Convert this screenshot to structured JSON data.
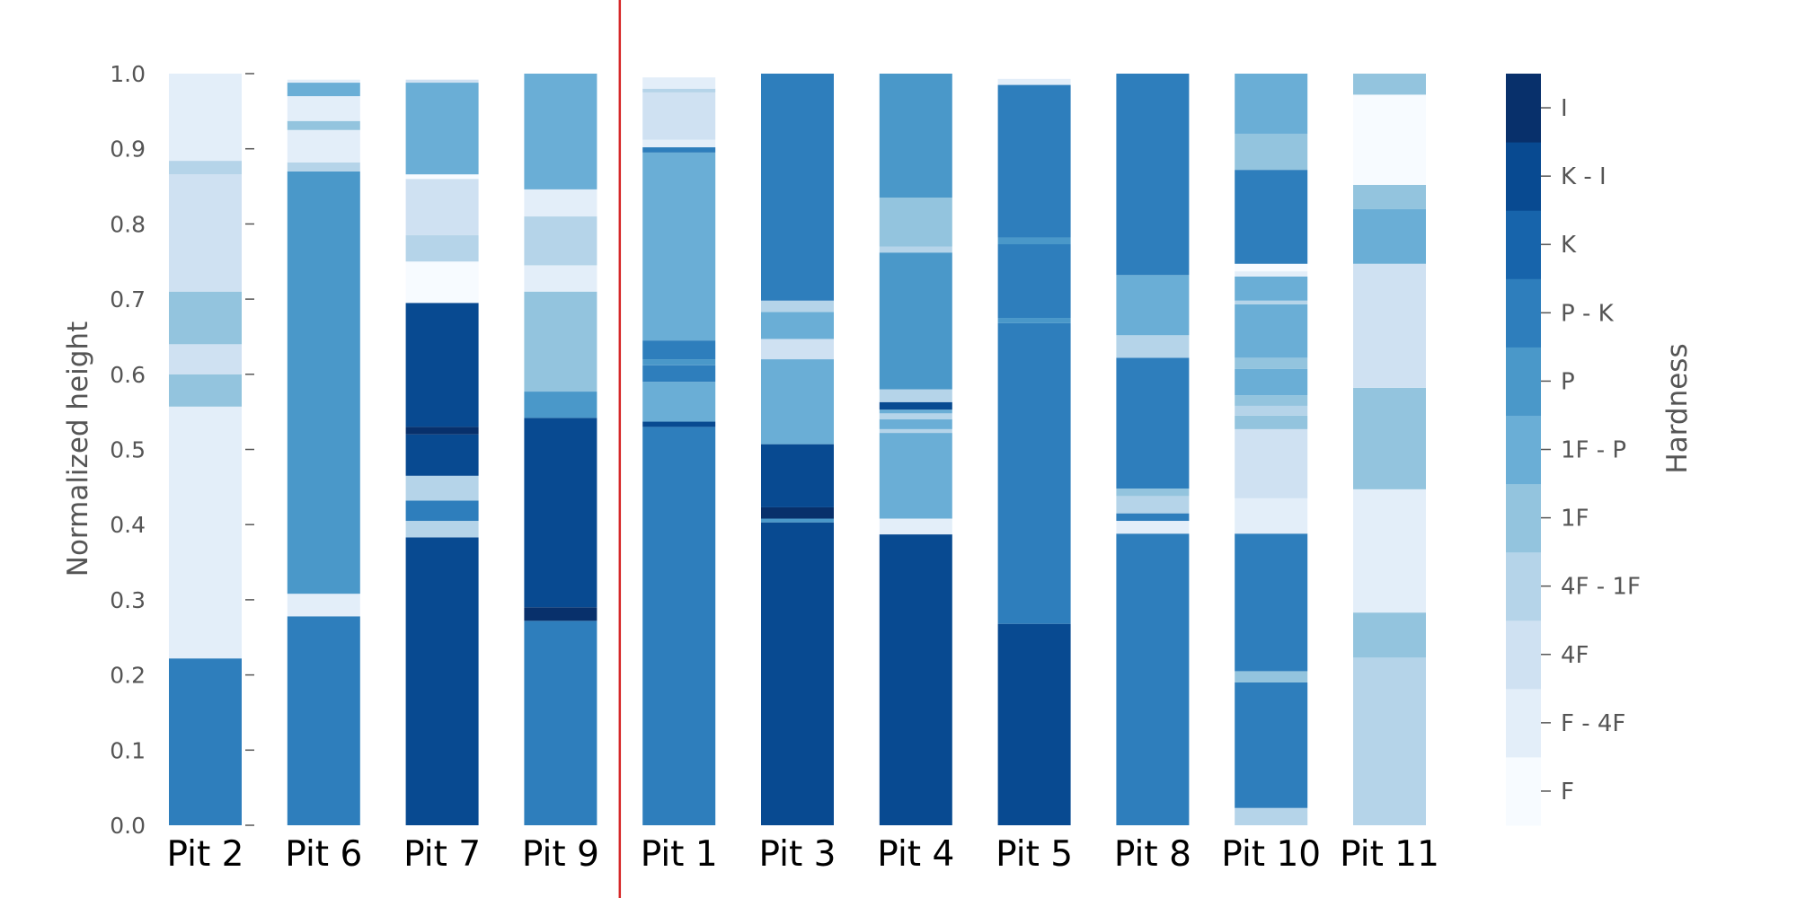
{
  "chart_data": {
    "type": "bar",
    "title": "",
    "xlabel": "",
    "ylabel": "Normalized height",
    "ylim": [
      0.0,
      1.0
    ],
    "yticks": [
      "0.0",
      "0.1",
      "0.2",
      "0.3",
      "0.4",
      "0.5",
      "0.6",
      "0.7",
      "0.8",
      "0.9",
      "1.0"
    ],
    "colorbar_label": "Hardness",
    "hardness_levels": [
      {
        "label": "F",
        "color": "#f7fbff"
      },
      {
        "label": "F - 4F",
        "color": "#e3eef9"
      },
      {
        "label": "4F",
        "color": "#cfe1f2"
      },
      {
        "label": "4F - 1F",
        "color": "#b5d4e9"
      },
      {
        "label": "1F",
        "color": "#93c4de"
      },
      {
        "label": "1F - P",
        "color": "#6aaed6"
      },
      {
        "label": "P",
        "color": "#4a98c9"
      },
      {
        "label": "P - K",
        "color": "#2e7ebc"
      },
      {
        "label": "K",
        "color": "#1764ab"
      },
      {
        "label": "K - I",
        "color": "#084a91"
      },
      {
        "label": "I",
        "color": "#08306b"
      }
    ],
    "separator_after_category": "Pit 9",
    "separator_color": "#d62728",
    "categories": [
      "Pit 2",
      "Pit 6",
      "Pit 7",
      "Pit 9",
      "Pit 1",
      "Pit 3",
      "Pit 4",
      "Pit 5",
      "Pit 8",
      "Pit 10",
      "Pit 11"
    ],
    "pits": [
      {
        "name": "Pit 2",
        "layers": [
          {
            "from": 0.0,
            "to": 0.222,
            "hardness": "P - K"
          },
          {
            "from": 0.222,
            "to": 0.557,
            "hardness": "F - 4F"
          },
          {
            "from": 0.557,
            "to": 0.6,
            "hardness": "1F"
          },
          {
            "from": 0.6,
            "to": 0.64,
            "hardness": "4F"
          },
          {
            "from": 0.64,
            "to": 0.71,
            "hardness": "1F"
          },
          {
            "from": 0.71,
            "to": 0.866,
            "hardness": "4F"
          },
          {
            "from": 0.866,
            "to": 0.884,
            "hardness": "4F - 1F"
          },
          {
            "from": 0.884,
            "to": 1.0,
            "hardness": "F - 4F"
          }
        ]
      },
      {
        "name": "Pit 6",
        "layers": [
          {
            "from": 0.0,
            "to": 0.278,
            "hardness": "P - K"
          },
          {
            "from": 0.278,
            "to": 0.308,
            "hardness": "F - 4F"
          },
          {
            "from": 0.308,
            "to": 0.87,
            "hardness": "P"
          },
          {
            "from": 0.87,
            "to": 0.882,
            "hardness": "4F - 1F"
          },
          {
            "from": 0.882,
            "to": 0.925,
            "hardness": "F - 4F"
          },
          {
            "from": 0.925,
            "to": 0.937,
            "hardness": "1F"
          },
          {
            "from": 0.937,
            "to": 0.97,
            "hardness": "F - 4F"
          },
          {
            "from": 0.97,
            "to": 0.988,
            "hardness": "1F - P"
          },
          {
            "from": 0.988,
            "to": 0.992,
            "hardness": "F - 4F"
          }
        ]
      },
      {
        "name": "Pit 7",
        "layers": [
          {
            "from": 0.0,
            "to": 0.383,
            "hardness": "K - I"
          },
          {
            "from": 0.383,
            "to": 0.405,
            "hardness": "4F - 1F"
          },
          {
            "from": 0.405,
            "to": 0.432,
            "hardness": "P - K"
          },
          {
            "from": 0.432,
            "to": 0.465,
            "hardness": "4F - 1F"
          },
          {
            "from": 0.465,
            "to": 0.52,
            "hardness": "K - I"
          },
          {
            "from": 0.52,
            "to": 0.53,
            "hardness": "I"
          },
          {
            "from": 0.53,
            "to": 0.695,
            "hardness": "K - I"
          },
          {
            "from": 0.695,
            "to": 0.75,
            "hardness": "F"
          },
          {
            "from": 0.75,
            "to": 0.785,
            "hardness": "4F - 1F"
          },
          {
            "from": 0.785,
            "to": 0.86,
            "hardness": "4F"
          },
          {
            "from": 0.86,
            "to": 0.866,
            "hardness": "F"
          },
          {
            "from": 0.866,
            "to": 0.988,
            "hardness": "1F - P"
          },
          {
            "from": 0.988,
            "to": 0.992,
            "hardness": "4F"
          }
        ]
      },
      {
        "name": "Pit 9",
        "layers": [
          {
            "from": 0.0,
            "to": 0.272,
            "hardness": "P - K"
          },
          {
            "from": 0.272,
            "to": 0.29,
            "hardness": "I"
          },
          {
            "from": 0.29,
            "to": 0.542,
            "hardness": "K - I"
          },
          {
            "from": 0.542,
            "to": 0.577,
            "hardness": "P"
          },
          {
            "from": 0.577,
            "to": 0.71,
            "hardness": "1F"
          },
          {
            "from": 0.71,
            "to": 0.745,
            "hardness": "F - 4F"
          },
          {
            "from": 0.745,
            "to": 0.81,
            "hardness": "4F - 1F"
          },
          {
            "from": 0.81,
            "to": 0.846,
            "hardness": "F - 4F"
          },
          {
            "from": 0.846,
            "to": 1.0,
            "hardness": "1F - P"
          }
        ]
      },
      {
        "name": "Pit 1",
        "layers": [
          {
            "from": 0.0,
            "to": 0.53,
            "hardness": "P - K"
          },
          {
            "from": 0.53,
            "to": 0.537,
            "hardness": "K - I"
          },
          {
            "from": 0.537,
            "to": 0.59,
            "hardness": "1F - P"
          },
          {
            "from": 0.59,
            "to": 0.612,
            "hardness": "P - K"
          },
          {
            "from": 0.612,
            "to": 0.62,
            "hardness": "P"
          },
          {
            "from": 0.62,
            "to": 0.645,
            "hardness": "P - K"
          },
          {
            "from": 0.645,
            "to": 0.895,
            "hardness": "1F - P"
          },
          {
            "from": 0.895,
            "to": 0.902,
            "hardness": "P - K"
          },
          {
            "from": 0.902,
            "to": 0.912,
            "hardness": "F - 4F"
          },
          {
            "from": 0.912,
            "to": 0.975,
            "hardness": "4F"
          },
          {
            "from": 0.975,
            "to": 0.98,
            "hardness": "4F - 1F"
          },
          {
            "from": 0.98,
            "to": 0.995,
            "hardness": "F - 4F"
          }
        ]
      },
      {
        "name": "Pit 3",
        "layers": [
          {
            "from": 0.0,
            "to": 0.403,
            "hardness": "K - I"
          },
          {
            "from": 0.403,
            "to": 0.408,
            "hardness": "P"
          },
          {
            "from": 0.408,
            "to": 0.423,
            "hardness": "I"
          },
          {
            "from": 0.423,
            "to": 0.507,
            "hardness": "K - I"
          },
          {
            "from": 0.507,
            "to": 0.62,
            "hardness": "1F - P"
          },
          {
            "from": 0.62,
            "to": 0.647,
            "hardness": "4F"
          },
          {
            "from": 0.647,
            "to": 0.683,
            "hardness": "1F - P"
          },
          {
            "from": 0.683,
            "to": 0.698,
            "hardness": "4F - 1F"
          },
          {
            "from": 0.698,
            "to": 1.0,
            "hardness": "P - K"
          }
        ]
      },
      {
        "name": "Pit 4",
        "layers": [
          {
            "from": 0.0,
            "to": 0.387,
            "hardness": "K - I"
          },
          {
            "from": 0.387,
            "to": 0.408,
            "hardness": "F - 4F"
          },
          {
            "from": 0.408,
            "to": 0.522,
            "hardness": "1F - P"
          },
          {
            "from": 0.522,
            "to": 0.527,
            "hardness": "4F - 1F"
          },
          {
            "from": 0.527,
            "to": 0.54,
            "hardness": "1F - P"
          },
          {
            "from": 0.54,
            "to": 0.548,
            "hardness": "4F - 1F"
          },
          {
            "from": 0.548,
            "to": 0.553,
            "hardness": "1F - P"
          },
          {
            "from": 0.553,
            "to": 0.563,
            "hardness": "K - I"
          },
          {
            "from": 0.563,
            "to": 0.58,
            "hardness": "4F - 1F"
          },
          {
            "from": 0.58,
            "to": 0.762,
            "hardness": "P"
          },
          {
            "from": 0.762,
            "to": 0.77,
            "hardness": "4F - 1F"
          },
          {
            "from": 0.77,
            "to": 0.835,
            "hardness": "1F"
          },
          {
            "from": 0.835,
            "to": 1.0,
            "hardness": "P"
          }
        ]
      },
      {
        "name": "Pit 5",
        "layers": [
          {
            "from": 0.0,
            "to": 0.268,
            "hardness": "K - I"
          },
          {
            "from": 0.268,
            "to": 0.668,
            "hardness": "P - K"
          },
          {
            "from": 0.668,
            "to": 0.675,
            "hardness": "P"
          },
          {
            "from": 0.675,
            "to": 0.773,
            "hardness": "P - K"
          },
          {
            "from": 0.773,
            "to": 0.782,
            "hardness": "P"
          },
          {
            "from": 0.782,
            "to": 0.985,
            "hardness": "P - K"
          },
          {
            "from": 0.985,
            "to": 0.993,
            "hardness": "F - 4F"
          }
        ]
      },
      {
        "name": "Pit 8",
        "layers": [
          {
            "from": 0.0,
            "to": 0.388,
            "hardness": "P - K"
          },
          {
            "from": 0.388,
            "to": 0.405,
            "hardness": "F - 4F"
          },
          {
            "from": 0.405,
            "to": 0.415,
            "hardness": "P - K"
          },
          {
            "from": 0.415,
            "to": 0.438,
            "hardness": "4F - 1F"
          },
          {
            "from": 0.438,
            "to": 0.448,
            "hardness": "1F"
          },
          {
            "from": 0.448,
            "to": 0.622,
            "hardness": "P - K"
          },
          {
            "from": 0.622,
            "to": 0.652,
            "hardness": "4F - 1F"
          },
          {
            "from": 0.652,
            "to": 0.732,
            "hardness": "1F - P"
          },
          {
            "from": 0.732,
            "to": 1.0,
            "hardness": "P - K"
          }
        ]
      },
      {
        "name": "Pit 10",
        "layers": [
          {
            "from": 0.0,
            "to": 0.023,
            "hardness": "4F - 1F"
          },
          {
            "from": 0.023,
            "to": 0.19,
            "hardness": "P - K"
          },
          {
            "from": 0.19,
            "to": 0.205,
            "hardness": "1F"
          },
          {
            "from": 0.205,
            "to": 0.388,
            "hardness": "P - K"
          },
          {
            "from": 0.388,
            "to": 0.435,
            "hardness": "F - 4F"
          },
          {
            "from": 0.435,
            "to": 0.527,
            "hardness": "4F"
          },
          {
            "from": 0.527,
            "to": 0.545,
            "hardness": "1F"
          },
          {
            "from": 0.545,
            "to": 0.558,
            "hardness": "4F - 1F"
          },
          {
            "from": 0.558,
            "to": 0.572,
            "hardness": "1F"
          },
          {
            "from": 0.572,
            "to": 0.607,
            "hardness": "1F - P"
          },
          {
            "from": 0.607,
            "to": 0.622,
            "hardness": "1F"
          },
          {
            "from": 0.622,
            "to": 0.693,
            "hardness": "1F - P"
          },
          {
            "from": 0.693,
            "to": 0.698,
            "hardness": "4F - 1F"
          },
          {
            "from": 0.698,
            "to": 0.73,
            "hardness": "1F - P"
          },
          {
            "from": 0.73,
            "to": 0.737,
            "hardness": "F - 4F"
          },
          {
            "from": 0.737,
            "to": 0.747,
            "hardness": "F"
          },
          {
            "from": 0.747,
            "to": 0.872,
            "hardness": "P - K"
          },
          {
            "from": 0.872,
            "to": 0.92,
            "hardness": "1F"
          },
          {
            "from": 0.92,
            "to": 1.0,
            "hardness": "1F - P"
          }
        ]
      },
      {
        "name": "Pit 11",
        "layers": [
          {
            "from": 0.0,
            "to": 0.223,
            "hardness": "4F - 1F"
          },
          {
            "from": 0.223,
            "to": 0.283,
            "hardness": "1F"
          },
          {
            "from": 0.283,
            "to": 0.447,
            "hardness": "F - 4F"
          },
          {
            "from": 0.447,
            "to": 0.582,
            "hardness": "1F"
          },
          {
            "from": 0.582,
            "to": 0.747,
            "hardness": "4F"
          },
          {
            "from": 0.747,
            "to": 0.82,
            "hardness": "1F - P"
          },
          {
            "from": 0.82,
            "to": 0.852,
            "hardness": "1F"
          },
          {
            "from": 0.852,
            "to": 0.972,
            "hardness": "F"
          },
          {
            "from": 0.972,
            "to": 1.0,
            "hardness": "1F"
          }
        ]
      }
    ]
  }
}
